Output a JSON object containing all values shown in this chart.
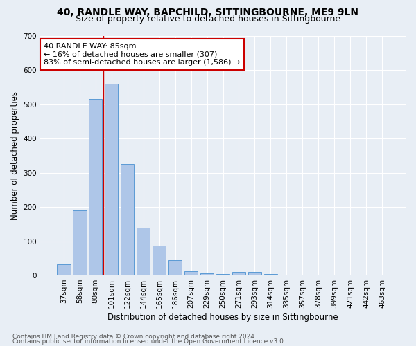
{
  "title1": "40, RANDLE WAY, BAPCHILD, SITTINGBOURNE, ME9 9LN",
  "title2": "Size of property relative to detached houses in Sittingbourne",
  "xlabel": "Distribution of detached houses by size in Sittingbourne",
  "ylabel": "Number of detached properties",
  "categories": [
    "37sqm",
    "58sqm",
    "80sqm",
    "101sqm",
    "122sqm",
    "144sqm",
    "165sqm",
    "186sqm",
    "207sqm",
    "229sqm",
    "250sqm",
    "271sqm",
    "293sqm",
    "314sqm",
    "335sqm",
    "357sqm",
    "378sqm",
    "399sqm",
    "421sqm",
    "442sqm",
    "463sqm"
  ],
  "values": [
    33,
    190,
    515,
    560,
    325,
    140,
    88,
    45,
    12,
    6,
    5,
    10,
    10,
    5,
    3,
    0,
    0,
    0,
    0,
    0,
    0
  ],
  "bar_color": "#aec6e8",
  "bar_edge_color": "#5b9bd5",
  "highlight_bar_color": "#7ba7d4",
  "annotation_text": "40 RANDLE WAY: 85sqm\n← 16% of detached houses are smaller (307)\n83% of semi-detached houses are larger (1,586) →",
  "annotation_box_color": "white",
  "annotation_box_edge_color": "#cc0000",
  "vline_color": "#cc0000",
  "vline_x_index": 2,
  "ylim": [
    0,
    700
  ],
  "yticks": [
    0,
    100,
    200,
    300,
    400,
    500,
    600,
    700
  ],
  "bg_color": "#e8eef5",
  "plot_bg_color": "#e8eef5",
  "footer1": "Contains HM Land Registry data © Crown copyright and database right 2024.",
  "footer2": "Contains public sector information licensed under the Open Government Licence v3.0.",
  "title1_fontsize": 10,
  "title2_fontsize": 9,
  "xlabel_fontsize": 8.5,
  "ylabel_fontsize": 8.5,
  "tick_fontsize": 7.5,
  "annotation_fontsize": 8,
  "footer_fontsize": 6.5
}
